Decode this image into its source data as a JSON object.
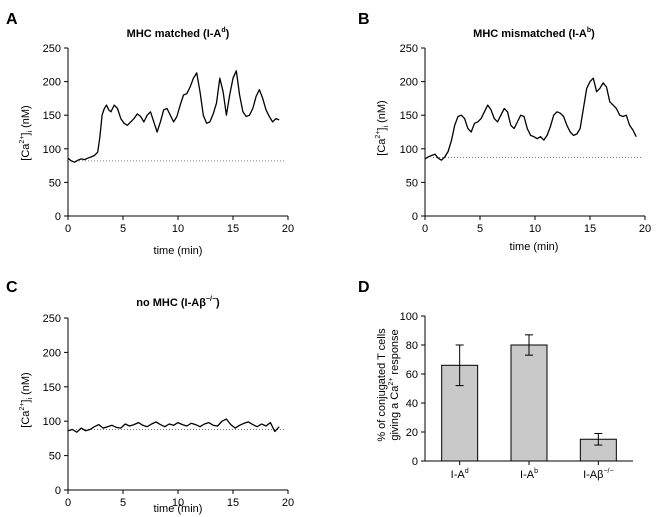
{
  "chart_data": [
    {
      "panel": "A",
      "type": "line",
      "title_main": "MHC  matched  (I-A",
      "title_sup": "d",
      "title_end": ")",
      "xlabel": "time (min)",
      "ylabel_pre": "[Ca",
      "ylabel_sup": "2+",
      "ylabel_mid": "]",
      "ylabel_sub": "i",
      "ylabel_post": " (nM)",
      "xlim": [
        0,
        20
      ],
      "ylim": [
        0,
        250
      ],
      "xticks": [
        "0",
        "5",
        "10",
        "15",
        "20"
      ],
      "yticks": [
        "0",
        "50",
        "100",
        "150",
        "200",
        "250"
      ],
      "baseline": 82,
      "x": [
        0,
        0.3,
        0.6,
        0.9,
        1.2,
        1.5,
        1.8,
        2.1,
        2.4,
        2.7,
        2.9,
        3.1,
        3.3,
        3.5,
        3.7,
        3.9,
        4.2,
        4.5,
        4.8,
        5.1,
        5.4,
        5.7,
        6.0,
        6.3,
        6.6,
        6.9,
        7.2,
        7.5,
        7.8,
        8.1,
        8.4,
        8.7,
        9.0,
        9.3,
        9.6,
        9.9,
        10.2,
        10.5,
        10.8,
        11.1,
        11.4,
        11.7,
        12.0,
        12.3,
        12.6,
        12.9,
        13.2,
        13.5,
        13.8,
        14.1,
        14.4,
        14.7,
        15.0,
        15.3,
        15.6,
        15.9,
        16.2,
        16.5,
        16.8,
        17.1,
        17.4,
        17.7,
        18.0,
        18.3,
        18.6,
        18.9,
        19.2
      ],
      "values": [
        86,
        82,
        80,
        83,
        85,
        84,
        86,
        88,
        90,
        95,
        118,
        150,
        160,
        165,
        158,
        155,
        165,
        160,
        145,
        138,
        135,
        140,
        145,
        152,
        148,
        140,
        150,
        155,
        140,
        125,
        140,
        158,
        160,
        150,
        140,
        148,
        165,
        180,
        182,
        192,
        205,
        213,
        185,
        150,
        138,
        140,
        152,
        168,
        205,
        185,
        150,
        180,
        205,
        216,
        180,
        155,
        148,
        150,
        160,
        178,
        188,
        175,
        158,
        148,
        140,
        145,
        143
      ]
    },
    {
      "panel": "B",
      "type": "line",
      "title_main": "MHC  mismatched  (I-A",
      "title_sup": "b",
      "title_end": ")",
      "xlabel": "time (min)",
      "ylabel_pre": "[Ca",
      "ylabel_sup": "2+",
      "ylabel_mid": "]",
      "ylabel_sub": "i",
      "ylabel_post": " (nM)",
      "xlim": [
        0,
        20
      ],
      "ylim": [
        0,
        250
      ],
      "xticks": [
        "0",
        "5",
        "10",
        "15",
        "20"
      ],
      "yticks": [
        "0",
        "50",
        "100",
        "150",
        "200",
        "250"
      ],
      "baseline": 87,
      "x": [
        0,
        0.3,
        0.6,
        0.9,
        1.2,
        1.5,
        1.8,
        2.1,
        2.4,
        2.7,
        3.0,
        3.3,
        3.6,
        3.9,
        4.2,
        4.5,
        4.8,
        5.1,
        5.4,
        5.7,
        6.0,
        6.3,
        6.6,
        6.9,
        7.2,
        7.5,
        7.8,
        8.1,
        8.4,
        8.7,
        9.0,
        9.3,
        9.6,
        9.9,
        10.2,
        10.5,
        10.8,
        11.1,
        11.4,
        11.7,
        12.0,
        12.3,
        12.6,
        12.9,
        13.2,
        13.5,
        13.8,
        14.1,
        14.4,
        14.7,
        15.0,
        15.3,
        15.6,
        15.9,
        16.2,
        16.5,
        16.8,
        17.1,
        17.4,
        17.7,
        18.0,
        18.3,
        18.6,
        18.9,
        19.2
      ],
      "values": [
        85,
        88,
        90,
        92,
        86,
        83,
        88,
        96,
        112,
        135,
        148,
        150,
        145,
        130,
        125,
        138,
        140,
        145,
        155,
        165,
        158,
        145,
        140,
        150,
        160,
        155,
        135,
        130,
        140,
        150,
        148,
        130,
        120,
        118,
        115,
        118,
        113,
        120,
        133,
        150,
        155,
        153,
        148,
        135,
        125,
        120,
        122,
        130,
        160,
        190,
        200,
        205,
        185,
        190,
        198,
        192,
        170,
        165,
        160,
        150,
        148,
        150,
        135,
        128,
        118
      ]
    },
    {
      "panel": "C",
      "type": "line",
      "title_main": "no  MHC  (I-Aβ",
      "title_sup": "−/−",
      "title_end": ")",
      "xlabel": "time (min)",
      "ylabel_pre": "[Ca",
      "ylabel_sup": "2+",
      "ylabel_mid": "]",
      "ylabel_sub": "i",
      "ylabel_post": " (nM)",
      "xlim": [
        0,
        20
      ],
      "ylim": [
        0,
        250
      ],
      "xticks": [
        "0",
        "5",
        "10",
        "15",
        "20"
      ],
      "yticks": [
        "0",
        "50",
        "100",
        "150",
        "200",
        "250"
      ],
      "baseline": 88,
      "x": [
        0,
        0.4,
        0.8,
        1.2,
        1.6,
        2.0,
        2.4,
        2.8,
        3.2,
        3.6,
        4.0,
        4.4,
        4.8,
        5.2,
        5.6,
        6.0,
        6.4,
        6.8,
        7.2,
        7.6,
        8.0,
        8.4,
        8.8,
        9.2,
        9.6,
        10.0,
        10.4,
        10.8,
        11.2,
        11.6,
        12.0,
        12.4,
        12.8,
        13.2,
        13.6,
        14.0,
        14.4,
        14.8,
        15.2,
        15.6,
        16.0,
        16.4,
        16.8,
        17.2,
        17.6,
        18.0,
        18.4,
        18.8,
        19.2
      ],
      "values": [
        86,
        88,
        84,
        90,
        86,
        88,
        92,
        95,
        90,
        92,
        94,
        91,
        90,
        96,
        93,
        95,
        98,
        94,
        92,
        96,
        99,
        95,
        92,
        96,
        94,
        98,
        95,
        93,
        97,
        95,
        92,
        96,
        98,
        94,
        93,
        100,
        103,
        95,
        90,
        94,
        97,
        99,
        95,
        92,
        96,
        93,
        98,
        85,
        92
      ]
    },
    {
      "panel": "D",
      "type": "bar",
      "ylabel_line1": "% of conjugated T cells",
      "ylabel_line2_pre": "giving a Ca",
      "ylabel_line2_sup": "2+",
      "ylabel_line2_post": " response",
      "ylim": [
        0,
        100
      ],
      "yticks": [
        "0",
        "20",
        "40",
        "60",
        "80",
        "100"
      ],
      "categories": [
        {
          "base": "I-A",
          "sup": "d"
        },
        {
          "base": "I-A",
          "sup": "b"
        },
        {
          "base": "I-Aβ",
          "sup": "−/−"
        }
      ],
      "values": [
        66,
        80,
        15
      ],
      "errors": [
        14,
        7,
        4
      ]
    }
  ],
  "panel_letters": [
    "A",
    "B",
    "C",
    "D"
  ],
  "colors": {
    "line": "#000000",
    "baseline": "#777777",
    "bar_fill": "#c9c9c9"
  }
}
